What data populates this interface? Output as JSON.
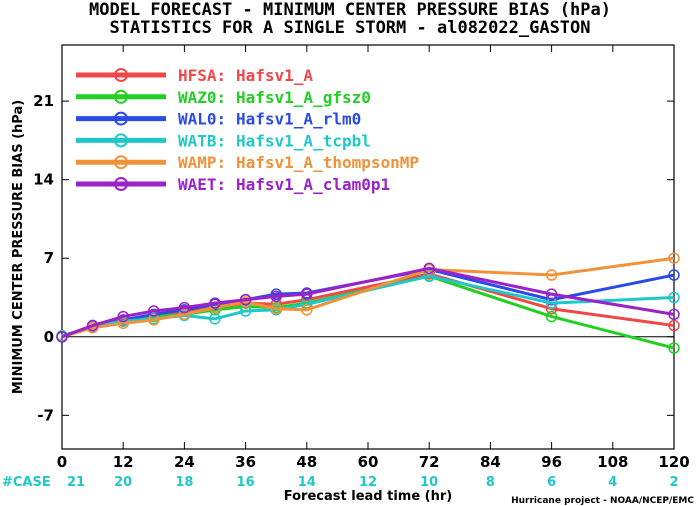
{
  "chart_data": {
    "type": "line",
    "title": "MODEL FORECAST - MINIMUM CENTER PRESSURE BIAS (hPa)",
    "subtitle": "STATISTICS FOR A SINGLE STORM - al082022_GASTON",
    "xlabel": "Forecast lead time (hr)",
    "ylabel": "MINIMUM CENTER PRESSURE BIAS (hPa)",
    "xlim": [
      0,
      120
    ],
    "ylim": [
      -10,
      26
    ],
    "xticks": [
      0,
      12,
      24,
      36,
      48,
      60,
      72,
      84,
      96,
      108,
      120
    ],
    "yticks": [
      -7,
      0,
      7,
      14,
      21
    ],
    "legend_position": "top-left",
    "grid": false,
    "case_label": "#CASE",
    "case_counts": [
      {
        "x": 0,
        "n": "21"
      },
      {
        "x": 12,
        "n": "20"
      },
      {
        "x": 24,
        "n": "18"
      },
      {
        "x": 36,
        "n": "16"
      },
      {
        "x": 48,
        "n": "14"
      },
      {
        "x": 60,
        "n": "12"
      },
      {
        "x": 72,
        "n": "10"
      },
      {
        "x": 84,
        "n": "8"
      },
      {
        "x": 96,
        "n": "6"
      },
      {
        "x": 108,
        "n": "4"
      },
      {
        "x": 120,
        "n": "2"
      }
    ],
    "series": [
      {
        "name": "HFSA:",
        "label": "Hafsv1_A",
        "color": "#f04848",
        "points": [
          [
            0,
            0
          ],
          [
            6,
            1.0
          ],
          [
            12,
            1.5
          ],
          [
            18,
            1.9
          ],
          [
            24,
            2.3
          ],
          [
            30,
            2.6
          ],
          [
            36,
            3.0
          ],
          [
            42,
            2.9
          ],
          [
            48,
            3.3
          ],
          [
            72,
            5.6
          ],
          [
            96,
            2.5
          ],
          [
            120,
            1.0
          ]
        ]
      },
      {
        "name": "WAZ0:",
        "label": "Hafsv1_A_gfsz0",
        "color": "#22d022",
        "points": [
          [
            0,
            0
          ],
          [
            6,
            0.9
          ],
          [
            12,
            1.4
          ],
          [
            18,
            1.8
          ],
          [
            24,
            2.0
          ],
          [
            30,
            2.4
          ],
          [
            36,
            2.7
          ],
          [
            42,
            2.6
          ],
          [
            48,
            3.0
          ],
          [
            72,
            5.4
          ],
          [
            96,
            1.8
          ],
          [
            120,
            -1.0
          ]
        ]
      },
      {
        "name": "WAL0:",
        "label": "Hafsv1_A_rlm0",
        "color": "#2a4be8",
        "points": [
          [
            0,
            0
          ],
          [
            6,
            0.9
          ],
          [
            12,
            1.5
          ],
          [
            18,
            2.0
          ],
          [
            24,
            2.4
          ],
          [
            30,
            2.9
          ],
          [
            36,
            3.3
          ],
          [
            42,
            3.8
          ],
          [
            48,
            3.9
          ],
          [
            72,
            6.0
          ],
          [
            96,
            3.3
          ],
          [
            120,
            5.5
          ]
        ]
      },
      {
        "name": "WATB:",
        "label": "Hafsv1_A_tcpbl",
        "color": "#1fc8c8",
        "points": [
          [
            0,
            0.1
          ],
          [
            6,
            0.9
          ],
          [
            12,
            1.4
          ],
          [
            18,
            1.6
          ],
          [
            24,
            1.9
          ],
          [
            30,
            1.6
          ],
          [
            36,
            2.3
          ],
          [
            42,
            2.4
          ],
          [
            48,
            2.9
          ],
          [
            72,
            5.4
          ],
          [
            96,
            3.0
          ],
          [
            120,
            3.5
          ]
        ]
      },
      {
        "name": "WAMP:",
        "label": "Hafsv1_A_thompsonMP",
        "color": "#f0923a",
        "points": [
          [
            0,
            0
          ],
          [
            6,
            0.8
          ],
          [
            12,
            1.2
          ],
          [
            18,
            1.5
          ],
          [
            24,
            2.0
          ],
          [
            30,
            2.6
          ],
          [
            36,
            3.1
          ],
          [
            42,
            2.5
          ],
          [
            48,
            2.4
          ],
          [
            72,
            6.0
          ],
          [
            96,
            5.5
          ],
          [
            120,
            7.0
          ]
        ]
      },
      {
        "name": "WAET:",
        "label": "Hafsv1_A_clam0p1",
        "color": "#9a22c8",
        "points": [
          [
            0,
            0
          ],
          [
            6,
            1.0
          ],
          [
            12,
            1.8
          ],
          [
            18,
            2.3
          ],
          [
            24,
            2.6
          ],
          [
            30,
            3.0
          ],
          [
            36,
            3.3
          ],
          [
            42,
            3.6
          ],
          [
            48,
            3.8
          ],
          [
            72,
            6.1
          ],
          [
            96,
            3.8
          ],
          [
            120,
            2.0
          ]
        ]
      }
    ]
  },
  "footer": "Hurricane project - NOAA/NCEP/EMC"
}
